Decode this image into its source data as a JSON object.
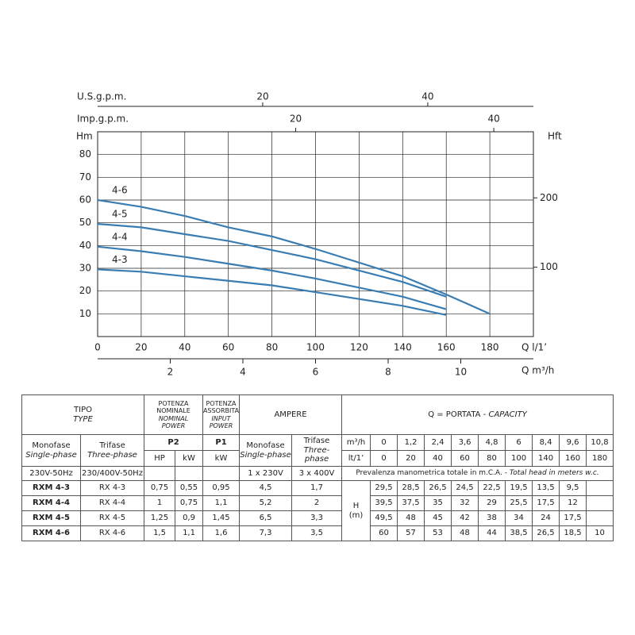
{
  "chart_data": {
    "type": "line",
    "y_label": "Hm",
    "y2_label": "Hft",
    "x_label": "Q l/1’",
    "x": [
      0,
      20,
      40,
      60,
      80,
      100,
      140,
      160,
      180
    ],
    "series": [
      {
        "name": "4-6",
        "color": "#3a7db3",
        "values": [
          60,
          57,
          53,
          48,
          44,
          38.5,
          26.5,
          18.5,
          10
        ]
      },
      {
        "name": "4-5",
        "color": "#3a7db3",
        "values": [
          49.5,
          48,
          45,
          42,
          38,
          34,
          24,
          17.5,
          null
        ]
      },
      {
        "name": "4-4",
        "color": "#3a7db3",
        "values": [
          39.5,
          37.5,
          35,
          32,
          29,
          25.5,
          17.5,
          12,
          null
        ]
      },
      {
        "name": "4-3",
        "color": "#3a7db3",
        "values": [
          29.5,
          28.5,
          26.5,
          24.5,
          22.5,
          19.5,
          13.5,
          9.5,
          null
        ]
      }
    ],
    "xlim": [
      0,
      200
    ],
    "xticks": [
      0,
      20,
      40,
      60,
      80,
      100,
      120,
      140,
      160,
      180
    ],
    "ylim": [
      0,
      90
    ],
    "yticks": [
      10,
      20,
      30,
      40,
      50,
      60,
      70,
      80
    ],
    "y2lim": [
      0,
      295.3
    ],
    "y2ticks": [
      100,
      200
    ],
    "grid": true,
    "top_axes": [
      {
        "label": "U.S.g.p.m.",
        "lim": [
          0,
          52.8
        ],
        "ticks": [
          20,
          40
        ]
      },
      {
        "label": "Imp.g.p.m.",
        "lim": [
          0,
          44
        ],
        "ticks": [
          20,
          40
        ]
      }
    ],
    "bottom_axis": {
      "label": "Q m³/h",
      "lim": [
        0,
        12
      ],
      "ticks": [
        2,
        4,
        6,
        8,
        10
      ]
    }
  },
  "table": {
    "type_header": {
      "it": "TIPO",
      "en": "TYPE"
    },
    "p2_header": {
      "it": "POTENZA NOMINALE",
      "en": "NOMINAL POWER",
      "symbol": "P2"
    },
    "p1_header": {
      "it": "POTENZA ASSORBITA",
      "en": "INPUT POWER",
      "symbol": "P1"
    },
    "ampere_header": "AMPERE",
    "capacity_header": {
      "it": "Q = PORTATA -",
      "en": "CAPACITY"
    },
    "single_phase": {
      "it": "Monofase",
      "en": "Single-phase"
    },
    "three_phase": {
      "it": "Trifase",
      "en": "Three-phase"
    },
    "units": {
      "hp": "HP",
      "kw": "kW",
      "m3h": "m³/h",
      "lmin": "lt/1’",
      "head": "H",
      "head_unit": "(m)"
    },
    "q_m3h": [
      "0",
      "1,2",
      "2,4",
      "3,6",
      "4,8",
      "6",
      "8,4",
      "9,6",
      "10,8"
    ],
    "q_lmin": [
      "0",
      "20",
      "40",
      "60",
      "80",
      "100",
      "140",
      "160",
      "180"
    ],
    "voltage": {
      "single": "230V-50Hz",
      "three": "230/400V-50Hz",
      "amp_single": "1 x 230V",
      "amp_three": "3 x 400V"
    },
    "head_note": {
      "it": "Prevalenza manometrica totale in m.C.A. -",
      "en": "Total head in meters w.c."
    },
    "rows": [
      {
        "single": "RXM 4-3",
        "three": "RX 4-3",
        "hp": "0,75",
        "kw": "0,55",
        "p1": "0,95",
        "amp_single": "4,5",
        "amp_three": "1,7",
        "head": [
          "29,5",
          "28,5",
          "26,5",
          "24,5",
          "22,5",
          "19,5",
          "13,5",
          "9,5"
        ]
      },
      {
        "single": "RXM 4-4",
        "three": "RX 4-4",
        "hp": "1",
        "kw": "0,75",
        "p1": "1,1",
        "amp_single": "5,2",
        "amp_three": "2",
        "head": [
          "39,5",
          "37,5",
          "35",
          "32",
          "29",
          "25,5",
          "17,5",
          "12"
        ]
      },
      {
        "single": "RXM 4-5",
        "three": "RX 4-5",
        "hp": "1,25",
        "kw": "0,9",
        "p1": "1,45",
        "amp_single": "6,5",
        "amp_three": "3,3",
        "head": [
          "49,5",
          "48",
          "45",
          "42",
          "38",
          "34",
          "24",
          "17,5"
        ]
      },
      {
        "single": "RXM 4-6",
        "three": "RX 4-6",
        "hp": "1,5",
        "kw": "1,1",
        "p1": "1,6",
        "amp_single": "7,3",
        "amp_three": "3,5",
        "head": [
          "60",
          "57",
          "53",
          "48",
          "44",
          "38,5",
          "26,5",
          "18,5",
          "10"
        ]
      }
    ]
  }
}
